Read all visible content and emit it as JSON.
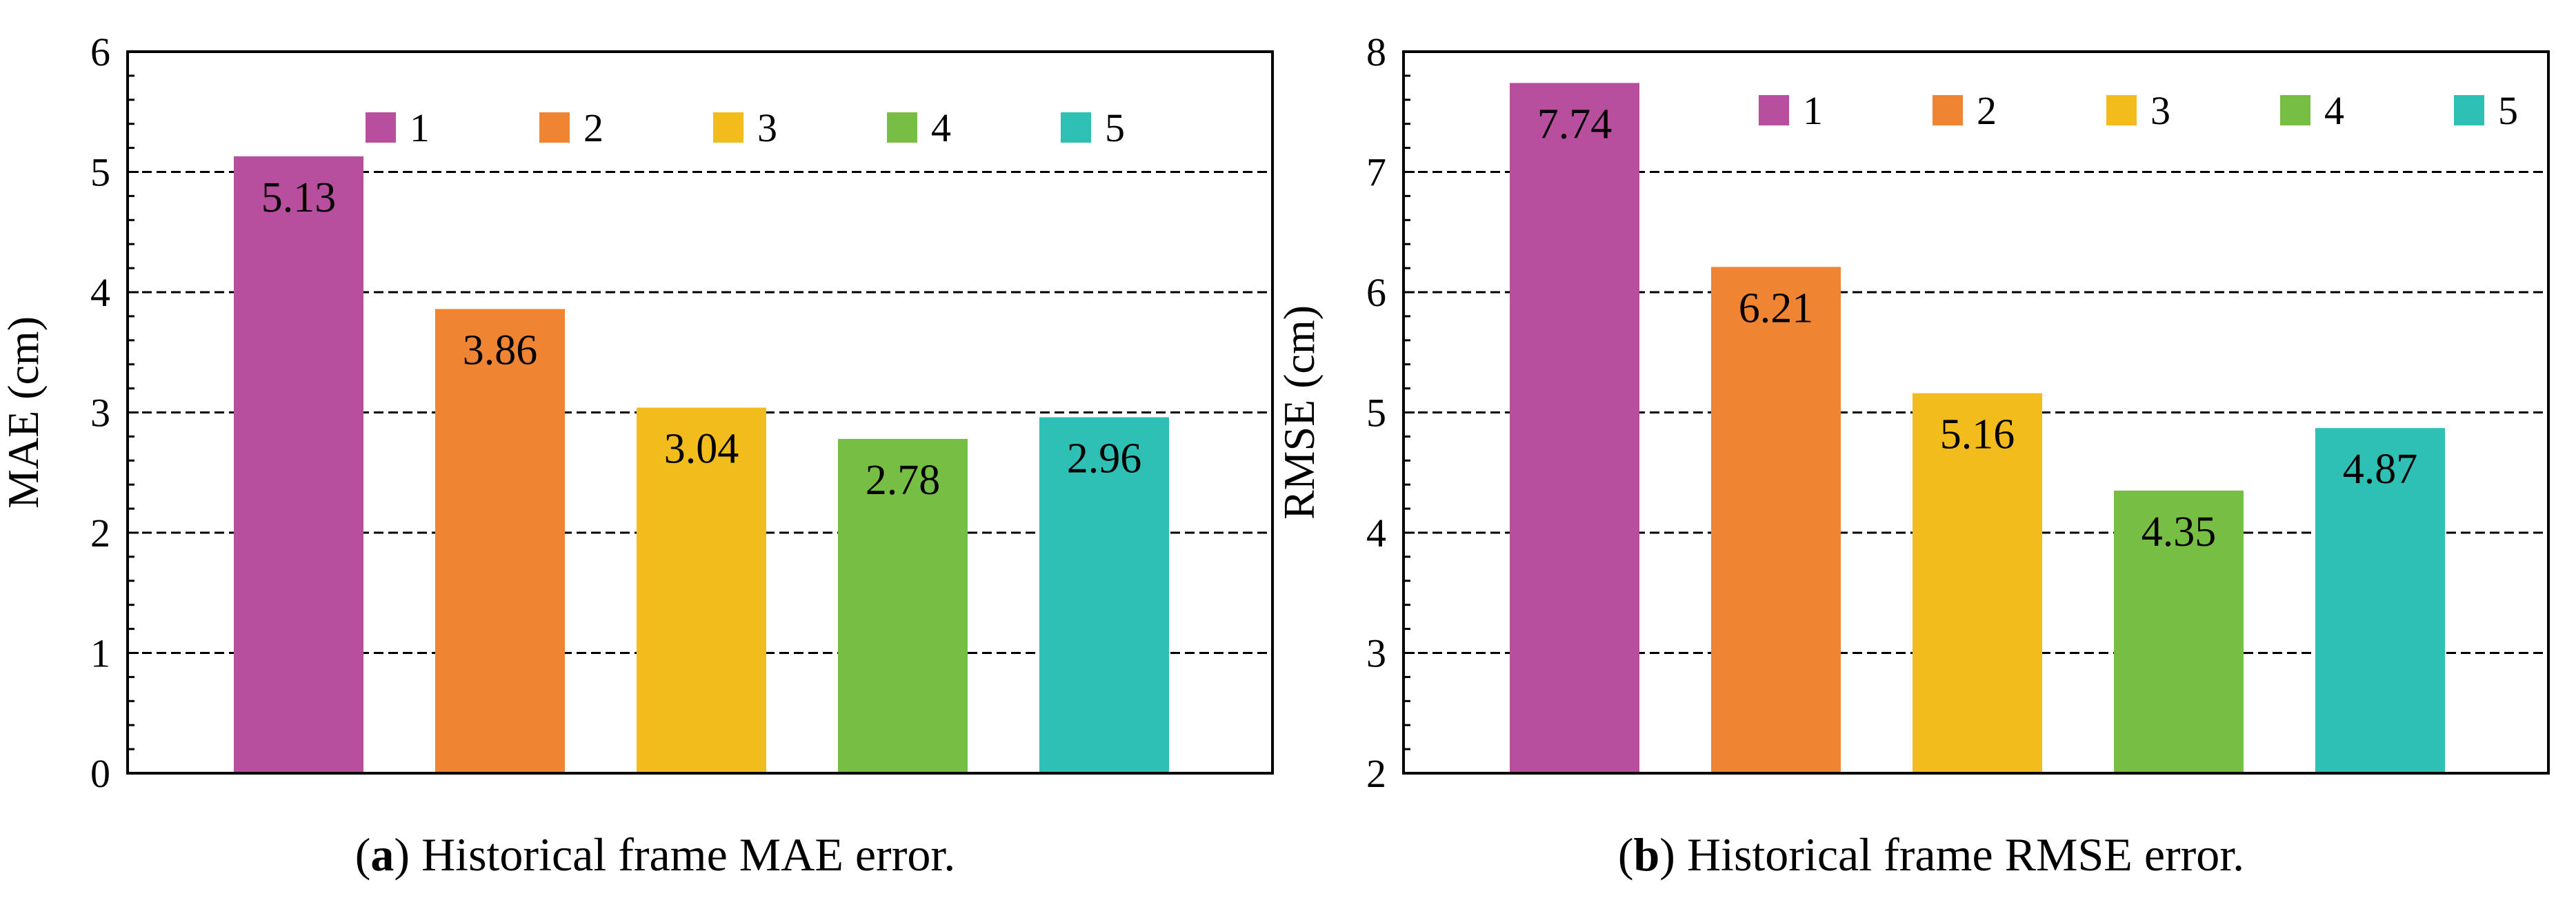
{
  "chart_data": [
    {
      "type": "bar",
      "categories": [
        "1",
        "2",
        "3",
        "4",
        "5"
      ],
      "values": [
        5.13,
        3.86,
        3.04,
        2.78,
        2.96
      ],
      "data_labels": [
        "5.13",
        "3.86",
        "3.04",
        "2.78",
        "2.96"
      ],
      "colors": [
        "#B84E9E",
        "#EF8532",
        "#F2BC1C",
        "#77BE44",
        "#2EBFB5"
      ],
      "ylabel": "MAE (cm)",
      "ylim": [
        0,
        6
      ],
      "yticks": [
        "0",
        "1",
        "2",
        "3",
        "4",
        "5",
        "6"
      ],
      "grid": "horizontal dashed",
      "legend": {
        "placement": "top",
        "entries": [
          "1",
          "2",
          "3",
          "4",
          "5"
        ]
      },
      "caption": {
        "tag": "a",
        "text": "Historical frame MAE error."
      }
    },
    {
      "type": "bar",
      "categories": [
        "1",
        "2",
        "3",
        "4",
        "5"
      ],
      "values": [
        7.74,
        6.21,
        5.16,
        4.35,
        4.87
      ],
      "data_labels": [
        "7.74",
        "6.21",
        "5.16",
        "4.35",
        "4.87"
      ],
      "colors": [
        "#B84E9E",
        "#EF8532",
        "#F2BC1C",
        "#77BE44",
        "#2EBFB5"
      ],
      "ylabel": "RMSE (cm)",
      "ylim": [
        2,
        8
      ],
      "yticks": [
        "2",
        "3",
        "4",
        "5",
        "6",
        "7",
        "8"
      ],
      "grid": "horizontal dashed",
      "legend": {
        "placement": "top",
        "entries": [
          "1",
          "2",
          "3",
          "4",
          "5"
        ]
      },
      "caption": {
        "tag": "b",
        "text": "Historical frame RMSE error."
      }
    }
  ]
}
